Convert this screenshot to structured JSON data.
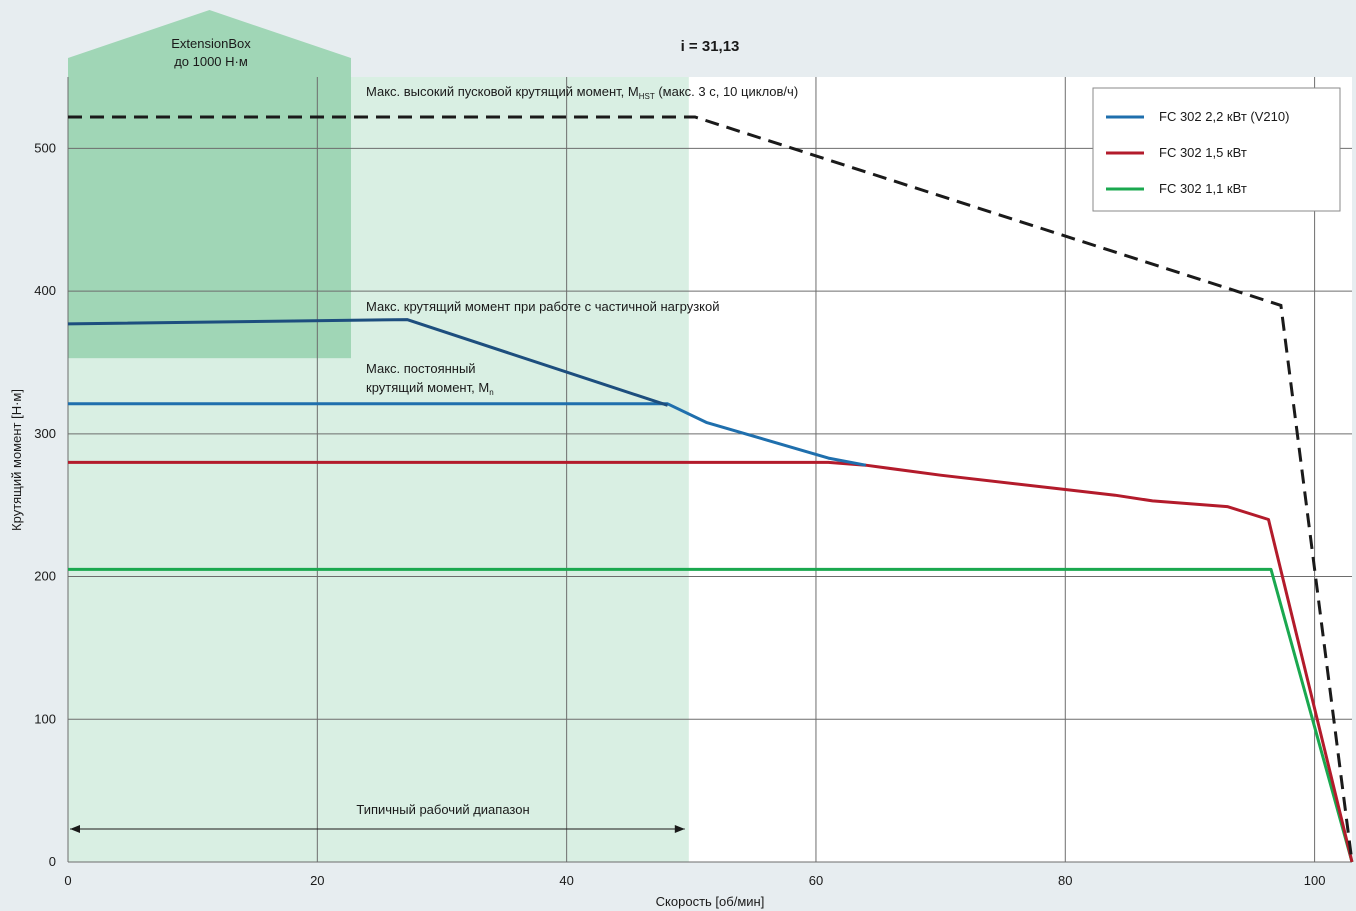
{
  "chart_data": {
    "type": "line",
    "title": "i = 31,13",
    "xlabel": "Скорость [об/мин]",
    "ylabel": "Крутящий момент [Н·м]",
    "xlim": [
      0,
      103
    ],
    "ylim": [
      0,
      550
    ],
    "xticks": [
      "0",
      "20",
      "40",
      "60",
      "80",
      "100"
    ],
    "yticks": [
      "0",
      "100",
      "200",
      "300",
      "400",
      "500"
    ],
    "grid": true,
    "legend_position": "top-right",
    "colors": {
      "background": "#e7edf0",
      "extension_box": "#a0d6b6",
      "typical_range": "#d9efe3",
      "v210": "#1f6fad",
      "v210_partial_load": "#1d4e7e",
      "kw15": "#b31b2b",
      "kw11": "#1aa84f",
      "hst": "#1a1a1a"
    },
    "series": [
      {
        "name": "FC 302 2,2 кВт (V210)",
        "x": [
          0,
          27.2,
          48.1,
          51.2,
          61.0,
          64.0
        ],
        "y": [
          321,
          321,
          321,
          308,
          283,
          278
        ]
      },
      {
        "name": "FC 302 1,5 кВт",
        "x": [
          0,
          61.0,
          64.0,
          70.0,
          80.0,
          84.0,
          87.0,
          90.0,
          93.0,
          96.3,
          103.0
        ],
        "y": [
          280,
          280,
          278,
          271,
          261,
          257,
          253,
          251,
          249,
          240,
          0
        ]
      },
      {
        "name": "FC 302 1,1 кВт",
        "x": [
          0,
          96.5,
          103.0
        ],
        "y": [
          205,
          205,
          0
        ]
      }
    ],
    "partial_load_curve": {
      "x": [
        0,
        27.2,
        48.1
      ],
      "y": [
        377,
        380,
        320
      ]
    },
    "hst_curve": {
      "x": [
        0,
        50.3,
        97.3,
        103.0
      ],
      "y": [
        522,
        522,
        390,
        0
      ]
    },
    "extension_box_range": {
      "x": [
        0,
        22.7
      ],
      "y": [
        353,
        550
      ]
    },
    "typical_range_x": [
      0,
      49.8
    ],
    "annotations": {
      "extension_box_line1": "ExtensionBox",
      "extension_box_line2": "до 1000 Н·м",
      "hst_label": "Макс. высокий пусковой крутящий момент, M",
      "hst_subscript": "HST",
      "hst_suffix": " (макс. 3 с, 10 циклов/ч)",
      "partial_load_label": "Макс. крутящий момент при работе с частичной нагрузкой",
      "constant_line1": "Макс. постоянный",
      "constant_line2": "крутящий момент, M",
      "constant_subscript": "n",
      "typical_range_label": "Типичный рабочий диапазон"
    }
  }
}
